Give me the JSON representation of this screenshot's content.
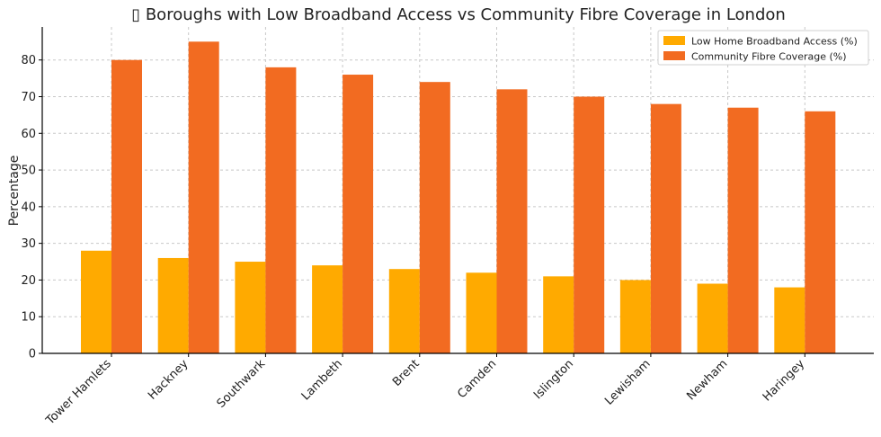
{
  "chart_data": {
    "type": "bar",
    "title": "▯ Boroughs with Low Broadband Access vs Community Fibre Coverage in London",
    "xlabel": "",
    "ylabel": "Percentage",
    "ylim": [
      0,
      89
    ],
    "yticks": [
      0,
      10,
      20,
      30,
      40,
      50,
      60,
      70,
      80
    ],
    "grid": true,
    "legend_position": "top-right",
    "categories": [
      "Tower Hamlets",
      "Hackney",
      "Southwark",
      "Lambeth",
      "Brent",
      "Camden",
      "Islington",
      "Lewisham",
      "Newham",
      "Haringey"
    ],
    "series": [
      {
        "name": "Low Home Broadband Access (%)",
        "color": "#FFAA00",
        "values": [
          28,
          26,
          25,
          24,
          23,
          22,
          21,
          20,
          19,
          18
        ]
      },
      {
        "name": "Community Fibre Coverage (%)",
        "color": "#F26B21",
        "values": [
          80,
          85,
          78,
          76,
          74,
          72,
          70,
          68,
          67,
          66
        ]
      }
    ]
  }
}
